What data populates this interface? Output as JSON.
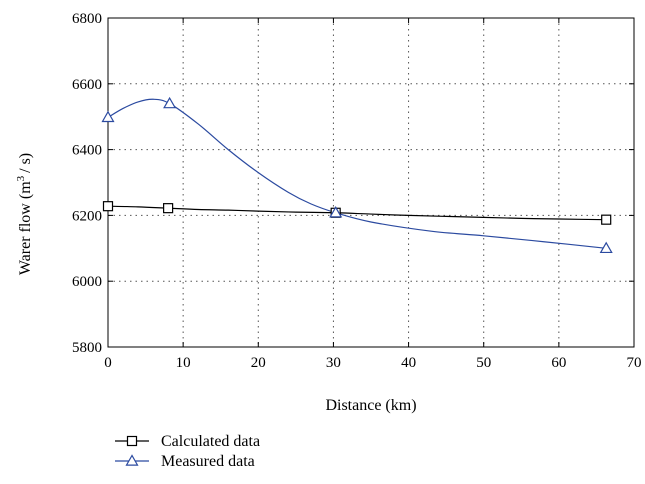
{
  "chart_data": {
    "type": "line",
    "title": "",
    "xlabel": "Distance (km)",
    "ylabel_main": "Warer flow (m",
    "ylabel_sup": "3",
    "ylabel_tail": "/ s)",
    "xlim": [
      0,
      70
    ],
    "ylim": [
      5800,
      6800
    ],
    "xticks": [
      0,
      10,
      20,
      30,
      40,
      50,
      60,
      70
    ],
    "yticks": [
      5800,
      6000,
      6200,
      6400,
      6600,
      6800
    ],
    "x_tick_labels": [
      "0",
      "10",
      "20",
      "30",
      "40",
      "50",
      "60",
      "70"
    ],
    "y_tick_labels": [
      "5800",
      "6000",
      "6200",
      "6400",
      "6600",
      "6800"
    ],
    "grid": true,
    "legend_position": "below",
    "series": [
      {
        "name": "Calculated data",
        "color": "#000000",
        "marker": "square",
        "markers": [
          {
            "x": 0,
            "y": 6228
          },
          {
            "x": 8,
            "y": 6222
          },
          {
            "x": 30.3,
            "y": 6208
          },
          {
            "x": 66.3,
            "y": 6187
          }
        ],
        "curve": [
          {
            "x": 0,
            "y": 6228
          },
          {
            "x": 4,
            "y": 6226
          },
          {
            "x": 8,
            "y": 6222
          },
          {
            "x": 12,
            "y": 6218
          },
          {
            "x": 16,
            "y": 6216
          },
          {
            "x": 20,
            "y": 6213
          },
          {
            "x": 25,
            "y": 6210
          },
          {
            "x": 30.3,
            "y": 6208
          },
          {
            "x": 35,
            "y": 6204
          },
          {
            "x": 40,
            "y": 6200
          },
          {
            "x": 45,
            "y": 6197
          },
          {
            "x": 50,
            "y": 6194
          },
          {
            "x": 55,
            "y": 6191
          },
          {
            "x": 60,
            "y": 6189
          },
          {
            "x": 66.3,
            "y": 6187
          }
        ]
      },
      {
        "name": "Measured data",
        "color": "#2b4aa0",
        "marker": "triangle",
        "markers": [
          {
            "x": 0,
            "y": 6498
          },
          {
            "x": 8.2,
            "y": 6540
          },
          {
            "x": 30.3,
            "y": 6208
          },
          {
            "x": 66.3,
            "y": 6100
          }
        ],
        "curve": [
          {
            "x": 0,
            "y": 6498
          },
          {
            "x": 2,
            "y": 6525
          },
          {
            "x": 4,
            "y": 6545
          },
          {
            "x": 6,
            "y": 6553
          },
          {
            "x": 8.2,
            "y": 6540
          },
          {
            "x": 12,
            "y": 6478
          },
          {
            "x": 16,
            "y": 6400
          },
          {
            "x": 20,
            "y": 6330
          },
          {
            "x": 24,
            "y": 6270
          },
          {
            "x": 27,
            "y": 6235
          },
          {
            "x": 30.3,
            "y": 6208
          },
          {
            "x": 35,
            "y": 6180
          },
          {
            "x": 43,
            "y": 6152
          },
          {
            "x": 50,
            "y": 6138
          },
          {
            "x": 58,
            "y": 6120
          },
          {
            "x": 66.3,
            "y": 6100
          }
        ]
      }
    ]
  }
}
